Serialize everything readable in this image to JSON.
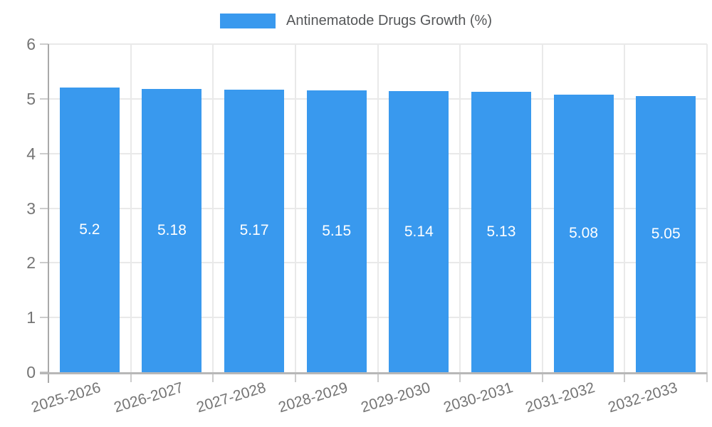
{
  "chart_data": {
    "type": "bar",
    "title": "Antinematode Drugs Growth (%)",
    "categories": [
      "2025-2026",
      "2026-2027",
      "2027-2028",
      "2028-2029",
      "2029-2030",
      "2030-2031",
      "2031-2032",
      "2032-2033"
    ],
    "series": [
      {
        "name": "Antinematode Drugs Growth (%)",
        "values": [
          5.2,
          5.18,
          5.17,
          5.15,
          5.14,
          5.13,
          5.08,
          5.05
        ],
        "value_labels": [
          "5.2",
          "5.18",
          "5.17",
          "5.15",
          "5.14",
          "5.13",
          "5.08",
          "5.05"
        ]
      }
    ],
    "xlabel": "",
    "ylabel": "",
    "ylim": [
      0,
      6
    ],
    "yticks": [
      0,
      1,
      2,
      3,
      4,
      5,
      6
    ],
    "grid": true,
    "legend_position": "top",
    "colors": {
      "bar": "#3999ee",
      "bar_value_text": "#ffffff",
      "gridline": "#e9e9e9",
      "y_axis_line": "#a9a9a9",
      "x_axis_line": "#b7b7b7",
      "tick": "#cccccc",
      "axis_label_text": "#757575",
      "legend_text": "#555759"
    }
  }
}
